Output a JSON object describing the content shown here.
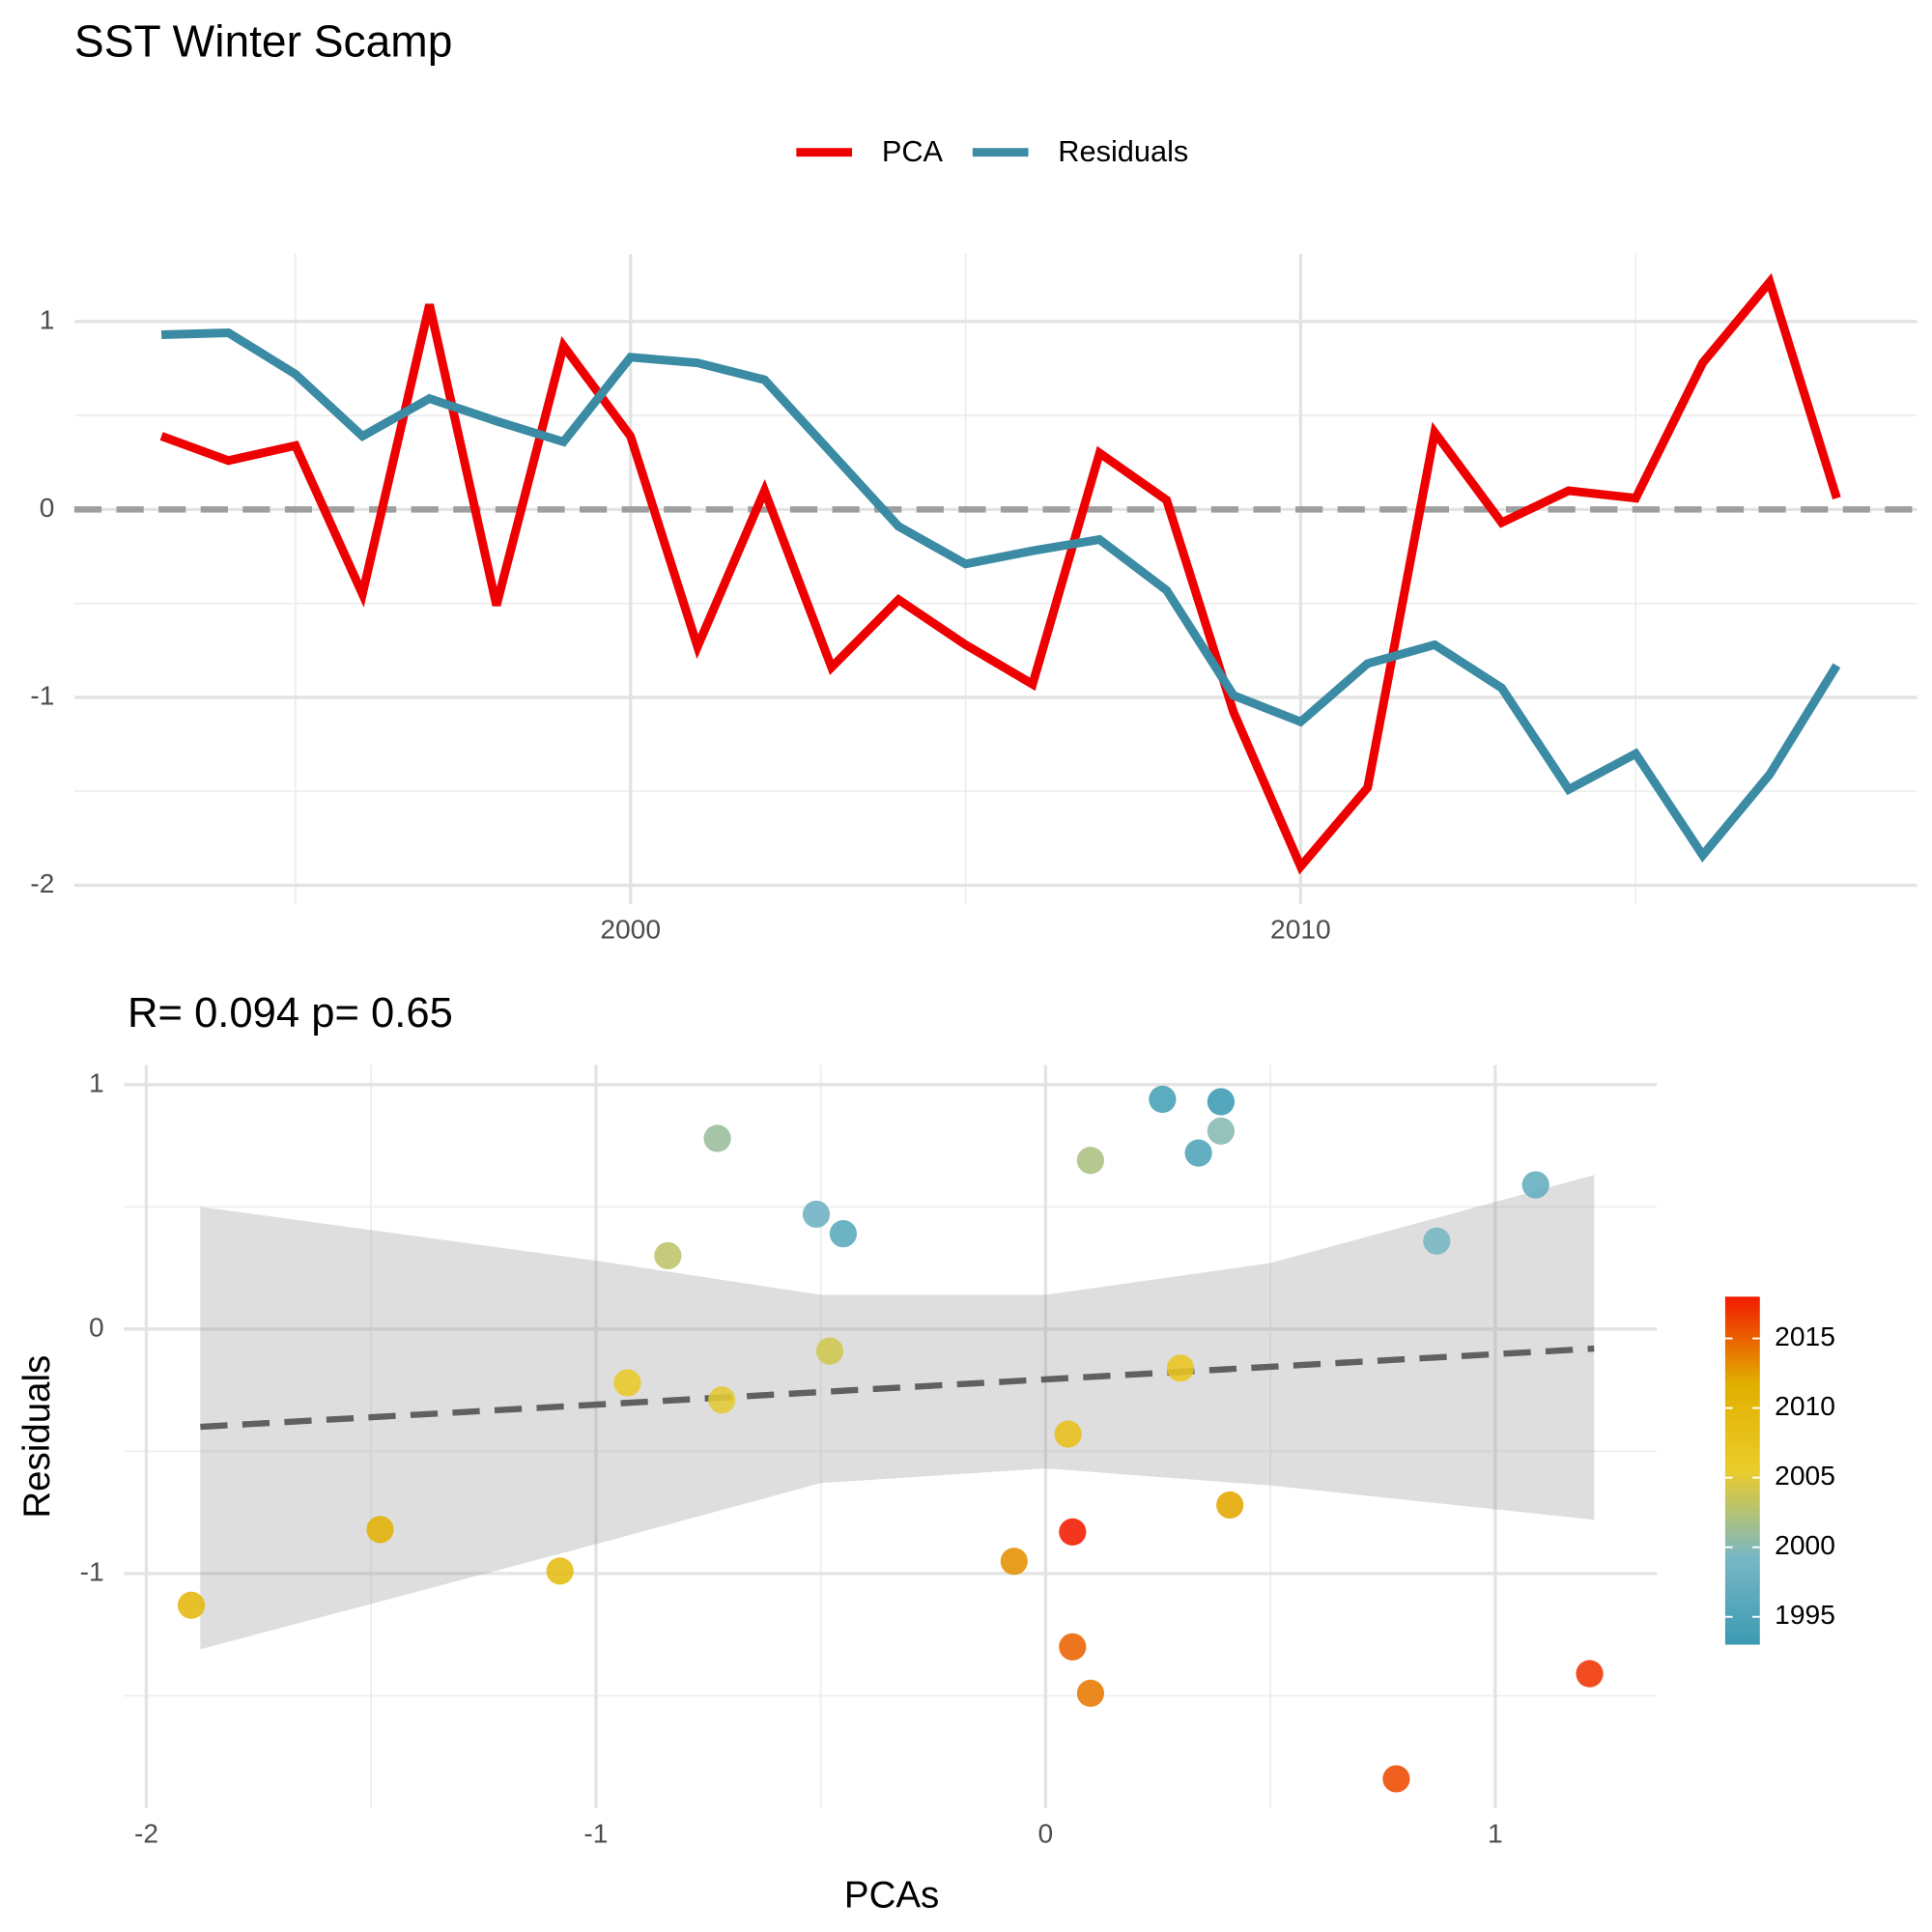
{
  "chart_data": [
    {
      "type": "line",
      "title": "SST Winter Scamp",
      "x": [
        1993,
        1994,
        1995,
        1996,
        1997,
        1998,
        1999,
        2000,
        2001,
        2002,
        2003,
        2004,
        2005,
        2006,
        2007,
        2008,
        2009,
        2010,
        2011,
        2012,
        2013,
        2014,
        2015,
        2016,
        2017,
        2018
      ],
      "series": [
        {
          "name": "PCA",
          "color": "#ee0000",
          "values": [
            0.39,
            0.26,
            0.34,
            -0.45,
            1.09,
            -0.51,
            0.87,
            0.39,
            -0.73,
            0.1,
            -0.84,
            -0.48,
            -0.72,
            -0.93,
            0.3,
            0.05,
            -1.08,
            -1.9,
            -1.48,
            0.41,
            -0.07,
            0.1,
            0.06,
            0.78,
            1.21,
            0.06
          ]
        },
        {
          "name": "Residuals",
          "color": "#3a8ba3",
          "values": [
            0.93,
            0.94,
            0.72,
            0.39,
            0.59,
            0.47,
            0.36,
            0.81,
            0.78,
            0.69,
            0.3,
            -0.09,
            -0.29,
            -0.22,
            -0.16,
            -0.43,
            -0.99,
            -1.13,
            -0.82,
            -0.72,
            -0.95,
            -1.49,
            -1.3,
            -1.84,
            -1.41,
            -0.83
          ]
        }
      ],
      "hline": 0,
      "xlim": [
        1991.7,
        2019.2
      ],
      "xticks": [
        2000,
        2010
      ],
      "ylim": [
        -2.1,
        1.36
      ],
      "yticks": [
        -2,
        -1,
        0,
        1
      ],
      "grid": true,
      "legend": "top"
    },
    {
      "type": "scatter",
      "subtitle": "R= 0.094  p= 0.65",
      "x_label": "PCAs",
      "y_label": "Residuals",
      "x": [
        0.39,
        0.26,
        0.34,
        -0.45,
        1.09,
        -0.51,
        0.87,
        0.39,
        -0.73,
        0.1,
        -0.84,
        -0.48,
        -0.72,
        -0.93,
        0.3,
        0.05,
        -1.08,
        -1.9,
        -1.48,
        0.41,
        -0.07,
        0.1,
        0.06,
        0.78,
        1.21,
        0.06
      ],
      "y": [
        0.93,
        0.94,
        0.72,
        0.39,
        0.59,
        0.47,
        0.36,
        0.81,
        0.78,
        0.69,
        0.3,
        -0.09,
        -0.29,
        -0.22,
        -0.16,
        -0.43,
        -0.99,
        -1.13,
        -0.82,
        -0.72,
        -0.95,
        -1.49,
        -1.3,
        -1.84,
        -1.41,
        -0.83
      ],
      "color_values": [
        1993,
        1994,
        1995,
        1996,
        1997,
        1998,
        1999,
        2000,
        2001,
        2002,
        2003,
        2004,
        2005,
        2006,
        2007,
        2008,
        2009,
        2010,
        2011,
        2012,
        2013,
        2014,
        2015,
        2016,
        2017,
        2018
      ],
      "colorscale": [
        {
          "value": 1993,
          "color": "#3b9ab2"
        },
        {
          "value": 1999.25,
          "color": "#78b7c5"
        },
        {
          "value": 2005.5,
          "color": "#ebcc2a"
        },
        {
          "value": 2011.75,
          "color": "#e1af00"
        },
        {
          "value": 2018,
          "color": "#f21a00"
        }
      ],
      "colorbar_ticks": [
        1995,
        2000,
        2005,
        2010,
        2015
      ],
      "fit": {
        "x": [
          -1.88,
          1.22
        ],
        "y": [
          -0.4,
          -0.08
        ]
      },
      "band": {
        "x": [
          -1.88,
          -1.0,
          -0.5,
          0,
          0.5,
          1.22
        ],
        "upper": [
          0.5,
          0.28,
          0.14,
          0.14,
          0.27,
          0.63
        ],
        "lower": [
          -1.31,
          -0.88,
          -0.63,
          -0.57,
          -0.64,
          -0.78
        ]
      },
      "xlim": [
        -2.05,
        1.36
      ],
      "xticks": [
        -2,
        -1,
        0,
        1
      ],
      "ylim": [
        -1.96,
        1.08
      ],
      "yticks": [
        -1,
        0,
        1
      ],
      "grid": true
    }
  ]
}
